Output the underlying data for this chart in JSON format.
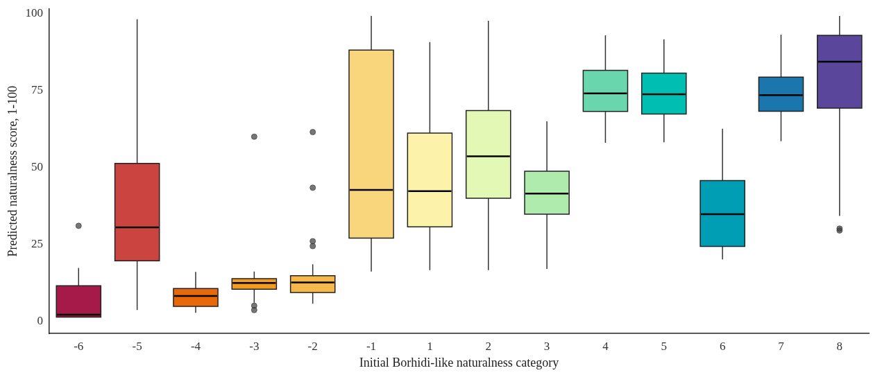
{
  "chart_data": {
    "type": "box",
    "xlabel": "Initial Borhidi-like naturalness category",
    "ylabel": "Predicted naturalness score, 1-100",
    "categories": [
      "-6",
      "-5",
      "-4",
      "-3",
      "-2",
      "-1",
      "1",
      "2",
      "3",
      "4",
      "5",
      "6",
      "7",
      "8"
    ],
    "colors": [
      "#a51a48",
      "#cb4440",
      "#e8690a",
      "#f39b1f",
      "#f6b74b",
      "#f9d67c",
      "#fdf2aa",
      "#e3f8b4",
      "#aeebac",
      "#6ad6ad",
      "#00bfb2",
      "#009eb5",
      "#1a76ad",
      "#5a479c"
    ],
    "boxes": [
      {
        "low": 1.3,
        "q1": 1.3,
        "median": 2.1,
        "q3": 11.5,
        "high": 17.3,
        "outliers": [
          31
        ]
      },
      {
        "low": 3.6,
        "q1": 19.6,
        "median": 30.5,
        "q3": 51.3,
        "high": 98.2
      },
      {
        "low": 2.7,
        "q1": 4.8,
        "median": 8.2,
        "q3": 10.6,
        "high": 16
      },
      {
        "low": 6,
        "q1": 10.4,
        "median": 12.4,
        "q3": 13.8,
        "high": 16.1,
        "outliers": [
          60,
          5,
          3.6
        ]
      },
      {
        "low": 5.7,
        "q1": 9.3,
        "median": 12.6,
        "q3": 14.8,
        "high": 18.5,
        "outliers": [
          61.5,
          43.4,
          26,
          24.4
        ]
      },
      {
        "low": 16.1,
        "q1": 27,
        "median": 42.7,
        "q3": 88.2,
        "high": 99.3
      },
      {
        "low": 16.6,
        "q1": 30.7,
        "median": 42.3,
        "q3": 61.2,
        "high": 90.8
      },
      {
        "low": 16.6,
        "q1": 40,
        "median": 53.6,
        "q3": 68.5,
        "high": 97.7
      },
      {
        "low": 17,
        "q1": 34.8,
        "median": 41.5,
        "q3": 48.8,
        "high": 65
      },
      {
        "low": 58,
        "q1": 68.2,
        "median": 74.1,
        "q3": 81.6,
        "high": 93
      },
      {
        "low": 58.2,
        "q1": 67.4,
        "median": 73.8,
        "q3": 80.7,
        "high": 91.7
      },
      {
        "low": 20.1,
        "q1": 24.3,
        "median": 34.8,
        "q3": 45.7,
        "high": 62.6
      },
      {
        "low": 58.5,
        "q1": 68.3,
        "median": 73.5,
        "q3": 79.4,
        "high": 93.2
      },
      {
        "low": 34.2,
        "q1": 69.3,
        "median": 84.4,
        "q3": 93,
        "high": 99.3,
        "outliers": [
          30.1,
          29.5
        ]
      }
    ],
    "ylim": [
      -4,
      101.5
    ],
    "yticks": [
      0,
      25,
      50,
      75,
      100
    ],
    "grid": false,
    "legend": false
  }
}
